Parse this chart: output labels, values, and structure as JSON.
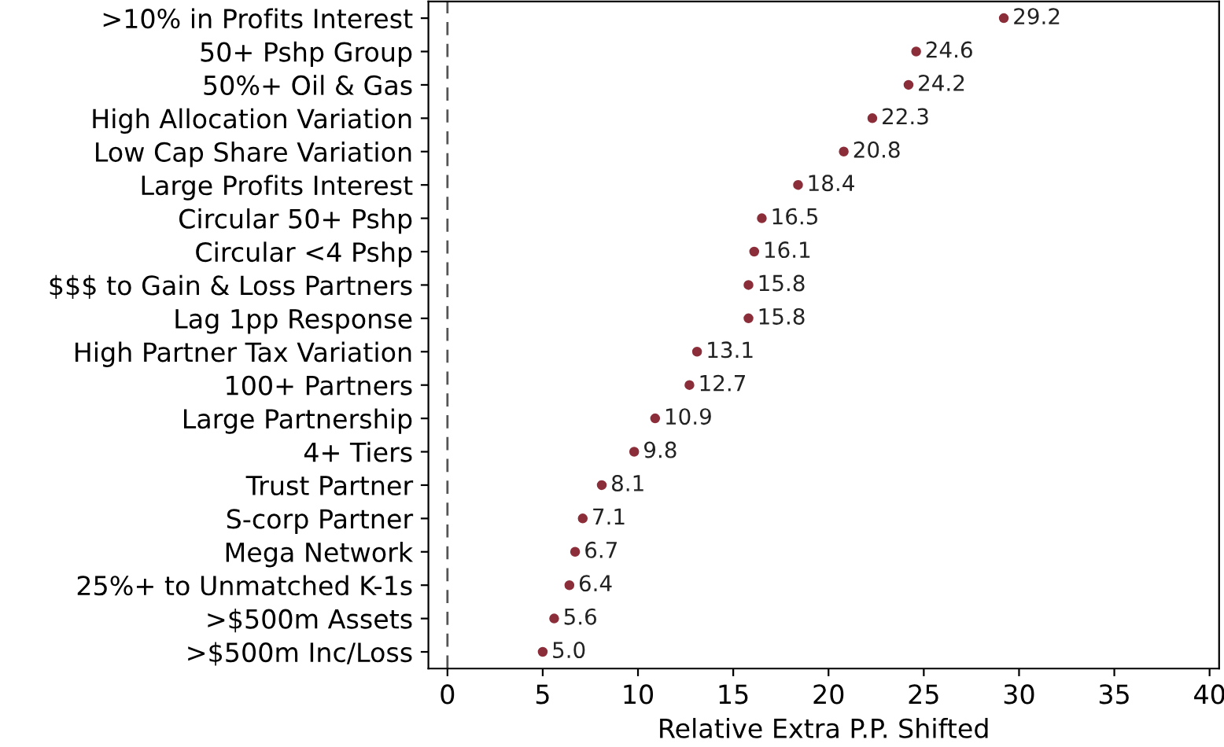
{
  "chart_data": {
    "type": "scatter",
    "orientation": "horizontal",
    "xlabel": "Relative Extra P.P. Shifted",
    "categories": [
      ">10% in Profits Interest",
      "50+ Pshp Group",
      "50%+ Oil & Gas",
      "High Allocation Variation",
      "Low Cap Share Variation",
      "Large Profits Interest",
      "Circular 50+ Pshp",
      "Circular <4 Pshp",
      "$$$ to Gain & Loss Partners",
      "Lag 1pp Response",
      "High Partner Tax Variation",
      "100+ Partners",
      "Large Partnership",
      "4+ Tiers",
      "Trust Partner",
      "S-corp Partner",
      "Mega Network",
      "25%+ to Unmatched K-1s",
      ">$500m Assets",
      ">$500m Inc/Loss"
    ],
    "values": [
      29.2,
      24.6,
      24.2,
      22.3,
      20.8,
      18.4,
      16.5,
      16.1,
      15.8,
      15.8,
      13.1,
      12.7,
      10.9,
      9.8,
      8.1,
      7.1,
      6.7,
      6.4,
      5.6,
      5.0
    ],
    "value_labels": [
      "29.2",
      "24.6",
      "24.2",
      "22.3",
      "20.8",
      "18.4",
      "16.5",
      "16.1",
      "15.8",
      "15.8",
      "13.1",
      "12.7",
      "10.9",
      "9.8",
      "8.1",
      "7.1",
      "6.7",
      "6.4",
      "5.6",
      "5.0"
    ],
    "color": "#8b2e3a",
    "marker": "circle",
    "xlim": [
      -1,
      40.5
    ],
    "xticks": [
      0,
      5,
      10,
      15,
      20,
      25,
      30,
      35,
      40
    ],
    "grid": false,
    "legend": false,
    "ref_lines": [
      {
        "axis": "x",
        "value": 0,
        "color": "#555555",
        "line_style": "dashed"
      }
    ]
  }
}
